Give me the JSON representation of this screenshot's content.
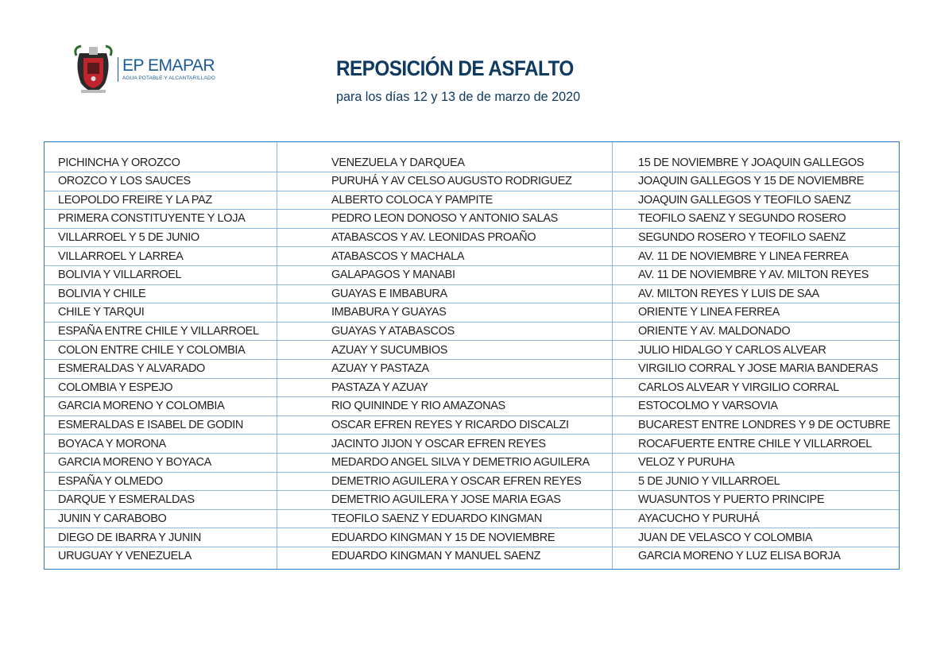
{
  "header": {
    "logo": {
      "name": "EP EMAPAR",
      "tagline": "AGUA POTABLE Y ALCANTARILLADO"
    },
    "title": "REPOSICIÓN DE ASFALTO",
    "subtitle": "para los días 12 y 13 de de marzo de 2020"
  },
  "colors": {
    "title": "#0f3a62",
    "border": "#2a78c8",
    "brand": "#1a5a9a"
  },
  "rows": [
    [
      "PICHINCHA Y OROZCO",
      "VENEZUELA Y DARQUEA",
      "15 DE NOVIEMBRE Y JOAQUIN GALLEGOS"
    ],
    [
      "OROZCO Y LOS SAUCES",
      "PURUHÁ Y AV CELSO AUGUSTO RODRIGUEZ",
      "JOAQUIN GALLEGOS Y 15 DE NOVIEMBRE"
    ],
    [
      "LEOPOLDO FREIRE Y LA PAZ",
      "ALBERTO COLOCA Y PAMPITE",
      "JOAQUIN GALLEGOS Y TEOFILO SAENZ"
    ],
    [
      "PRIMERA CONSTITUYENTE Y LOJA",
      "PEDRO LEON DONOSO Y ANTONIO SALAS",
      "TEOFILO SAENZ Y SEGUNDO ROSERO"
    ],
    [
      "VILLARROEL Y 5 DE JUNIO",
      "ATABASCOS Y AV. LEONIDAS PROAÑO",
      "SEGUNDO ROSERO Y TEOFILO SAENZ"
    ],
    [
      "VILLARROEL Y LARREA",
      "ATABASCOS Y MACHALA",
      "AV. 11 DE NOVIEMBRE Y LINEA FERREA"
    ],
    [
      "BOLIVIA Y VILLARROEL",
      "GALAPAGOS Y MANABI",
      "AV. 11 DE NOVIEMBRE Y AV. MILTON REYES"
    ],
    [
      "BOLIVIA Y CHILE",
      "GUAYAS E IMBABURA",
      "AV. MILTON REYES Y LUIS DE SAA"
    ],
    [
      "CHILE Y TARQUI",
      "IMBABURA Y GUAYAS",
      "ORIENTE Y LINEA FERREA"
    ],
    [
      "ESPAÑA ENTRE CHILE Y VILLARROEL",
      "GUAYAS Y ATABASCOS",
      "ORIENTE Y AV. MALDONADO"
    ],
    [
      "COLON ENTRE CHILE Y COLOMBIA",
      "AZUAY Y SUCUMBIOS",
      "JULIO HIDALGO Y CARLOS ALVEAR"
    ],
    [
      "ESMERALDAS Y ALVARADO",
      "AZUAY Y PASTAZA",
      "VIRGILIO CORRAL Y JOSE MARIA BANDERAS"
    ],
    [
      "COLOMBIA Y ESPEJO",
      "PASTAZA Y AZUAY",
      "CARLOS ALVEAR Y VIRGILIO CORRAL"
    ],
    [
      "GARCIA MORENO Y COLOMBIA",
      "RIO QUININDE Y RIO AMAZONAS",
      "ESTOCOLMO Y VARSOVIA"
    ],
    [
      "ESMERALDAS E ISABEL DE GODIN",
      "OSCAR EFREN REYES Y RICARDO DISCALZI",
      "BUCAREST ENTRE LONDRES Y 9 DE OCTUBRE"
    ],
    [
      "BOYACA Y MORONA",
      "JACINTO JIJON Y OSCAR EFREN REYES",
      "ROCAFUERTE ENTRE CHILE Y VILLARROEL"
    ],
    [
      "GARCIA MORENO Y BOYACA",
      "MEDARDO ANGEL SILVA Y DEMETRIO AGUILERA",
      "VELOZ Y PURUHA"
    ],
    [
      "ESPAÑA Y OLMEDO",
      "DEMETRIO AGUILERA Y OSCAR EFREN REYES",
      "5 DE JUNIO Y VILLARROEL"
    ],
    [
      "DARQUE Y ESMERALDAS",
      "DEMETRIO AGUILERA Y JOSE MARIA EGAS",
      "WUASUNTOS Y PUERTO PRINCIPE"
    ],
    [
      "JUNIN Y CARABOBO",
      "TEOFILO SAENZ Y EDUARDO KINGMAN",
      "AYACUCHO Y PURUHÁ"
    ],
    [
      "DIEGO DE IBARRA Y JUNIN",
      "EDUARDO KINGMAN Y 15 DE NOVIEMBRE",
      "JUAN DE VELASCO Y COLOMBIA"
    ],
    [
      "URUGUAY Y VENEZUELA",
      "EDUARDO KINGMAN Y MANUEL SAENZ",
      "GARCIA MORENO Y LUZ ELISA BORJA"
    ]
  ]
}
